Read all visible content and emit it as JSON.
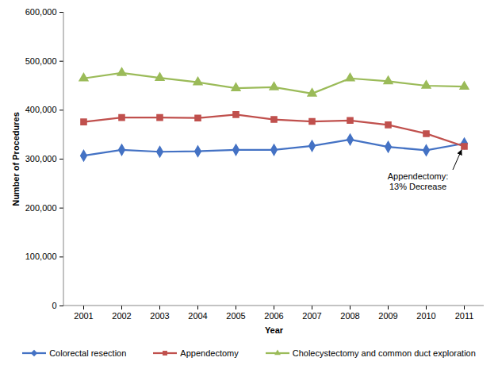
{
  "chart_data": {
    "type": "line",
    "x": [
      "2001",
      "2002",
      "2003",
      "2004",
      "2005",
      "2006",
      "2007",
      "2008",
      "2009",
      "2010",
      "2011"
    ],
    "xlabel": "Year",
    "ylabel": "Number of Procedures",
    "ylim": [
      0,
      600000
    ],
    "yticks": [
      0,
      {
        "value": 100000,
        "label": "100,000"
      },
      {
        "value": 200000,
        "label": "200,000"
      },
      {
        "value": 300000,
        "label": "300,000"
      },
      {
        "value": 400000,
        "label": "400,000"
      },
      {
        "value": 500000,
        "label": "500,000"
      },
      {
        "value": 600000,
        "label": "600,000"
      }
    ],
    "grid": false,
    "legend": "bottom",
    "series": [
      {
        "name": "Colorectal resection",
        "color": "#4472c4",
        "marker": "diamond",
        "values": [
          307000,
          319000,
          315000,
          316000,
          319000,
          319000,
          327000,
          340000,
          325000,
          318000,
          332000
        ]
      },
      {
        "name": "Appendectomy",
        "color": "#c0504d",
        "marker": "square",
        "values": [
          376000,
          385000,
          385000,
          384000,
          391000,
          381000,
          377000,
          379000,
          370000,
          352000,
          326000
        ]
      },
      {
        "name": "Cholecystectomy and common duct exploration",
        "color": "#9bbb59",
        "marker": "triangle",
        "values": [
          465000,
          476000,
          466000,
          457000,
          445000,
          447000,
          434000,
          465000,
          459000,
          450000,
          448000
        ]
      }
    ],
    "annotations": [
      {
        "text": "Appendectomy:\n13% Decrease",
        "series": "Appendectomy",
        "x": "2011"
      }
    ]
  }
}
